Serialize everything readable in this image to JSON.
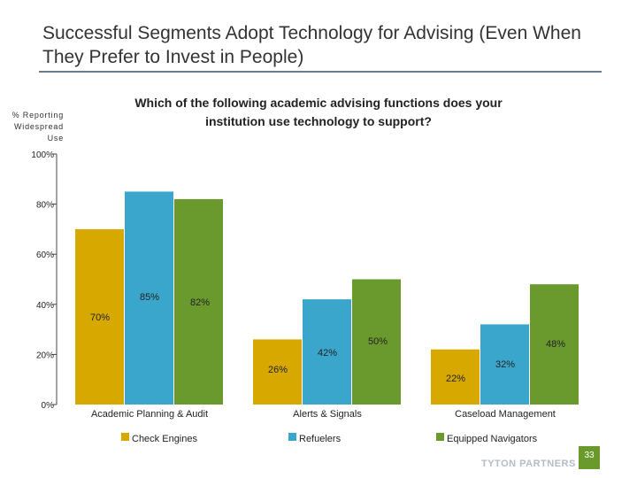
{
  "slide": {
    "title": "Successful Segments Adopt Technology for Advising (Even When They Prefer to Invest in People)",
    "logo": "TYTON PARTNERS",
    "page_number": "33"
  },
  "chart_data": {
    "type": "bar",
    "title": "Which of the following academic advising functions does your institution use technology to support?",
    "ylabel": "% Reporting Widespread Use",
    "xlabel": "",
    "ylim": [
      0,
      100
    ],
    "yticks": [
      0,
      20,
      40,
      60,
      80,
      100
    ],
    "ytick_labels": [
      "0%",
      "20%",
      "40%",
      "60%",
      "80%",
      "100%"
    ],
    "categories": [
      "Academic Planning & Audit",
      "Alerts & Signals",
      "Caseload Management"
    ],
    "series": [
      {
        "name": "Check Engines",
        "color": "#d6a800",
        "values": [
          70,
          26,
          22
        ],
        "labels": [
          "70%",
          "26%",
          "22%"
        ]
      },
      {
        "name": "Refuelers",
        "color": "#3aa6cc",
        "values": [
          85,
          42,
          32
        ],
        "labels": [
          "85%",
          "42%",
          "32%"
        ]
      },
      {
        "name": "Equipped Navigators",
        "color": "#6a9a2e",
        "values": [
          82,
          50,
          48
        ],
        "labels": [
          "82%",
          "50%",
          "48%"
        ]
      }
    ],
    "legend_position": "bottom",
    "grid": false
  }
}
